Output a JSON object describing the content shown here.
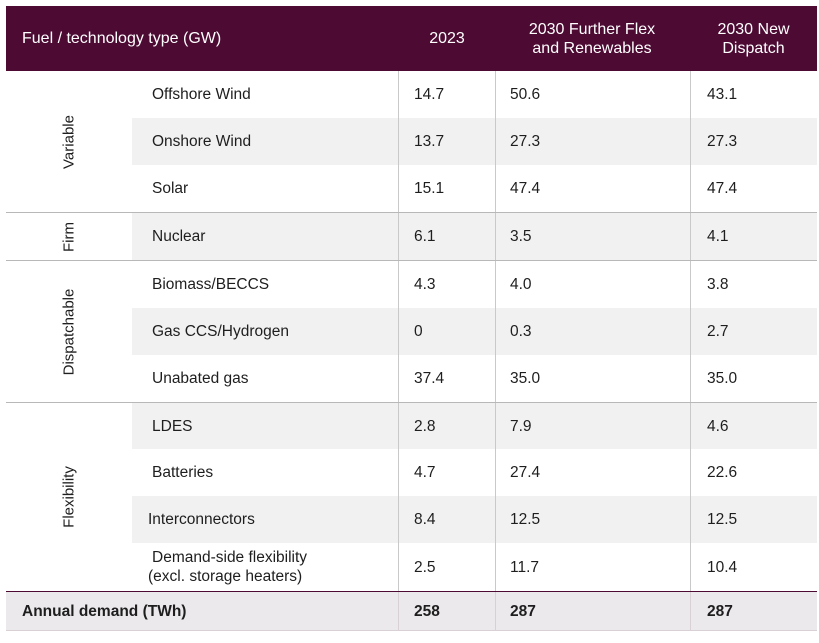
{
  "header": {
    "col0": "Fuel / technology type (GW)",
    "col1": "2023",
    "col2_line1": "2030 Further Flex",
    "col2_line2": "and Renewables",
    "col3_line1": "2030 New",
    "col3_line2": "Dispatch"
  },
  "categories": {
    "variable": "Variable",
    "firm": "Firm",
    "dispatchable": "Dispatchable",
    "flexibility": "Flexibility"
  },
  "rows": [
    {
      "name": "Offshore Wind",
      "v2023": "14.7",
      "further_flex": "50.6",
      "new_dispatch": "43.1"
    },
    {
      "name": "Onshore Wind",
      "v2023": "13.7",
      "further_flex": "27.3",
      "new_dispatch": "27.3"
    },
    {
      "name": "Solar",
      "v2023": "15.1",
      "further_flex": "47.4",
      "new_dispatch": "47.4"
    },
    {
      "name": "Nuclear",
      "v2023": "6.1",
      "further_flex": "3.5",
      "new_dispatch": "4.1"
    },
    {
      "name": "Biomass/BECCS",
      "v2023": "4.3",
      "further_flex": "4.0",
      "new_dispatch": "3.8"
    },
    {
      "name": "Gas CCS/Hydrogen",
      "v2023": "0",
      "further_flex": "0.3",
      "new_dispatch": "2.7"
    },
    {
      "name": "Unabated gas",
      "v2023": "37.4",
      "further_flex": "35.0",
      "new_dispatch": "35.0"
    },
    {
      "name": "LDES",
      "v2023": "2.8",
      "further_flex": "7.9",
      "new_dispatch": "4.6"
    },
    {
      "name": "Batteries",
      "v2023": "4.7",
      "further_flex": "27.4",
      "new_dispatch": "22.6"
    },
    {
      "name": "Interconnectors",
      "v2023": "8.4",
      "further_flex": "12.5",
      "new_dispatch": "12.5"
    },
    {
      "name_line1": "Demand-side flexibility",
      "name_line2": "(excl. storage heaters)",
      "v2023": "2.5",
      "further_flex": "11.7",
      "new_dispatch": "10.4"
    }
  ],
  "footer": {
    "label": "Annual demand (TWh)",
    "v2023": "258",
    "further_flex": "287",
    "new_dispatch": "287"
  },
  "colors": {
    "header_bg": "#4d0a33",
    "stripe": "#f1f1f1",
    "footer_bg": "#ece9ec"
  }
}
